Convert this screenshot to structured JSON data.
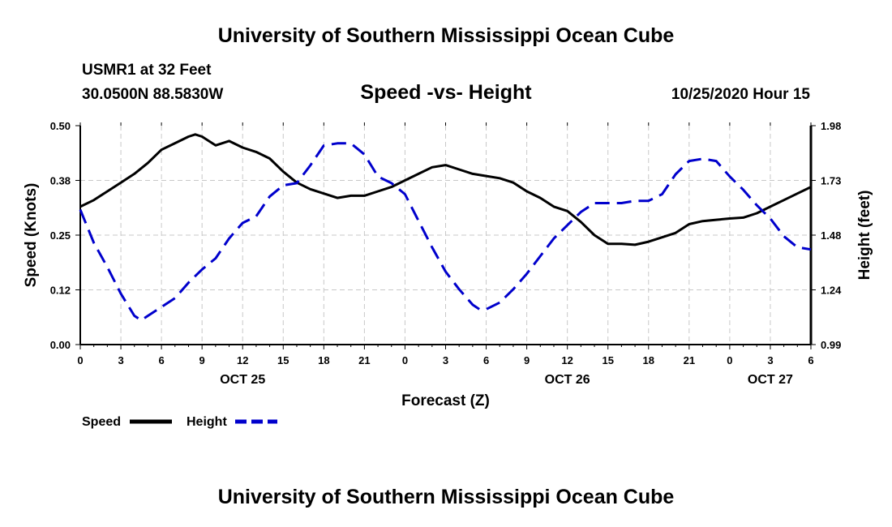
{
  "header": {
    "title": "University of Southern Mississippi Ocean Cube",
    "station": "USMR1 at 32 Feet",
    "coordinates": "30.0500N 88.5830W",
    "subtitle": "Speed -vs- Height",
    "datetime": "10/25/2020 Hour 15"
  },
  "footer": {
    "title": "University of Southern Mississippi Ocean Cube"
  },
  "chart_data": {
    "type": "line",
    "xlabel": "Forecast (Z)",
    "ylabel_left": "Speed (Knots)",
    "ylabel_right": "Height (feet)",
    "x_range": [
      0,
      54
    ],
    "x_ticks": [
      0,
      3,
      6,
      9,
      12,
      15,
      18,
      21,
      24,
      27,
      30,
      33,
      36,
      39,
      42,
      45,
      48,
      51,
      54
    ],
    "x_tick_labels": [
      "0",
      "3",
      "6",
      "9",
      "12",
      "15",
      "18",
      "21",
      "0",
      "3",
      "6",
      "9",
      "12",
      "15",
      "18",
      "21",
      "0",
      "3",
      "6"
    ],
    "date_labels": [
      {
        "text": "OCT 25",
        "at": 12
      },
      {
        "text": "OCT 26",
        "at": 36
      },
      {
        "text": "OCT 27",
        "at": 51
      }
    ],
    "y_left_range": [
      0,
      0.5
    ],
    "y_left_ticks": [
      0,
      0.125,
      0.25,
      0.375,
      0.5
    ],
    "y_left_tick_labels": [
      "0.00",
      "0.12",
      "0.25",
      "0.38",
      "0.50"
    ],
    "y_right_range": [
      0.99,
      1.98
    ],
    "y_right_ticks": [
      0.99,
      1.2375,
      1.485,
      1.7325,
      1.98
    ],
    "y_right_tick_labels": [
      "0.99",
      "1.24",
      "1.48",
      "1.73",
      "1.98"
    ],
    "grid": true,
    "series": [
      {
        "name": "Speed",
        "axis": "left",
        "color": "#000000",
        "style": "solid",
        "x": [
          0,
          1,
          2,
          3,
          4,
          5,
          6,
          7,
          8,
          8.5,
          9,
          10,
          11,
          12,
          13,
          14,
          15,
          16,
          17,
          18,
          19,
          20,
          21,
          22,
          23,
          24,
          25,
          26,
          27,
          28,
          29,
          30,
          31,
          32,
          33,
          34,
          35,
          36,
          37,
          38,
          39,
          40,
          41,
          42,
          43,
          44,
          45,
          46,
          47,
          48,
          49,
          50,
          51,
          52,
          53,
          54
        ],
        "values": [
          0.315,
          0.33,
          0.35,
          0.37,
          0.39,
          0.415,
          0.445,
          0.46,
          0.475,
          0.48,
          0.475,
          0.455,
          0.465,
          0.45,
          0.44,
          0.425,
          0.395,
          0.37,
          0.355,
          0.345,
          0.335,
          0.34,
          0.34,
          0.35,
          0.36,
          0.375,
          0.39,
          0.405,
          0.41,
          0.4,
          0.39,
          0.385,
          0.38,
          0.37,
          0.35,
          0.335,
          0.315,
          0.305,
          0.28,
          0.25,
          0.23,
          0.23,
          0.228,
          0.235,
          0.245,
          0.255,
          0.275,
          0.282,
          0.285,
          0.288,
          0.29,
          0.3,
          0.315,
          0.33,
          0.345,
          0.36
        ]
      },
      {
        "name": "Height",
        "axis": "right",
        "color": "#0000cc",
        "style": "dashed",
        "x": [
          0,
          1,
          2,
          3,
          4,
          4.5,
          5,
          6,
          7,
          8,
          9,
          10,
          11,
          12,
          13,
          14,
          15,
          16,
          17,
          18,
          19,
          20,
          21,
          22,
          23,
          24,
          25,
          26,
          27,
          28,
          29,
          29.5,
          30,
          31,
          32,
          33,
          34,
          35,
          36,
          37,
          38,
          39,
          40,
          41,
          42,
          43,
          44,
          45,
          46,
          47,
          48,
          49,
          50,
          51,
          52,
          53,
          54
        ],
        "values": [
          1.6,
          1.45,
          1.34,
          1.22,
          1.12,
          1.1,
          1.12,
          1.16,
          1.2,
          1.27,
          1.33,
          1.38,
          1.47,
          1.54,
          1.57,
          1.66,
          1.71,
          1.72,
          1.8,
          1.89,
          1.9,
          1.9,
          1.85,
          1.75,
          1.72,
          1.67,
          1.55,
          1.43,
          1.32,
          1.24,
          1.17,
          1.15,
          1.15,
          1.18,
          1.24,
          1.31,
          1.39,
          1.47,
          1.53,
          1.59,
          1.63,
          1.63,
          1.63,
          1.64,
          1.64,
          1.67,
          1.76,
          1.82,
          1.83,
          1.82,
          1.75,
          1.69,
          1.62,
          1.56,
          1.48,
          1.43,
          1.42
        ]
      }
    ],
    "legend": [
      {
        "label": "Speed",
        "color": "#000000",
        "style": "solid"
      },
      {
        "label": "Height",
        "color": "#0000cc",
        "style": "dashed"
      }
    ]
  }
}
